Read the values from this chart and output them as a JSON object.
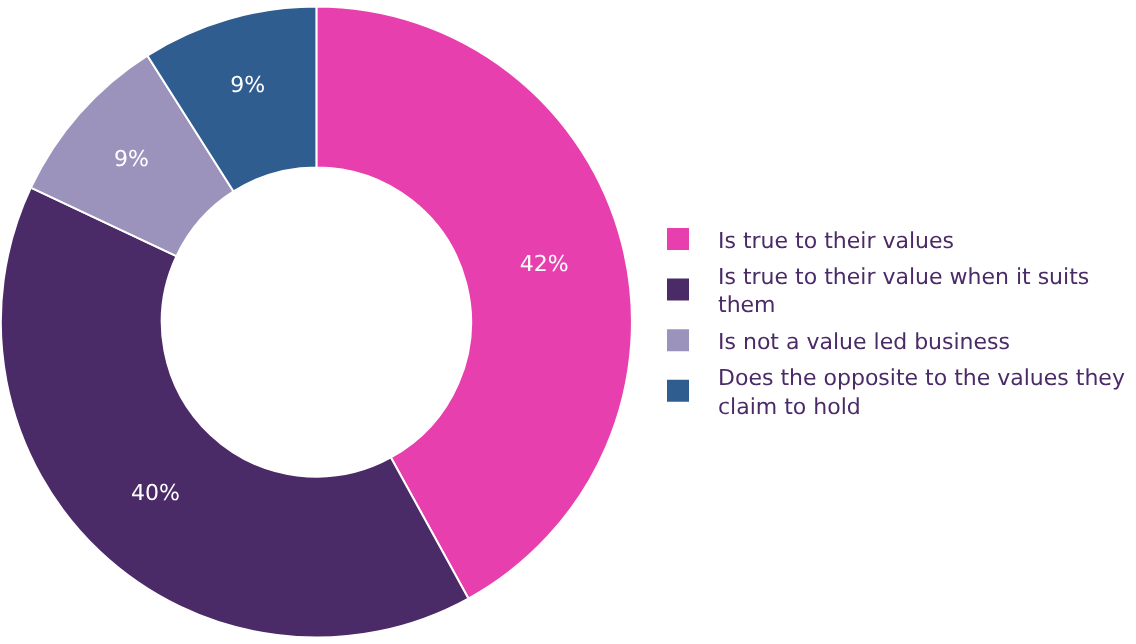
{
  "chart_data": {
    "type": "donut",
    "categories": [
      "Is true to their values",
      "Is true to their value when it suits them",
      "Is not a value led business",
      "Does the opposite to the values they claim to hold"
    ],
    "values": [
      42,
      40,
      9,
      9
    ],
    "value_labels": [
      "42%",
      "40%",
      "9%",
      "9%"
    ],
    "colors": [
      "#e83fae",
      "#4b2a68",
      "#9b93bb",
      "#2f5d8f"
    ],
    "legend": "right"
  }
}
